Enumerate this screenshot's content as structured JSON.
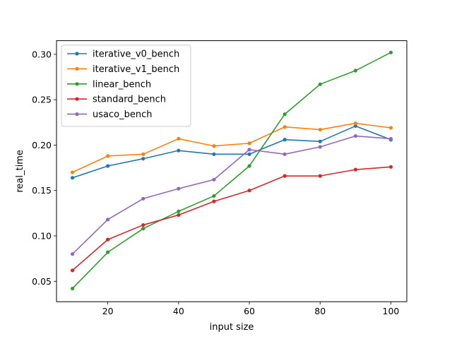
{
  "chart_data": {
    "type": "line",
    "title": "",
    "xlabel": "input size",
    "ylabel": "real_time",
    "xlim": [
      5.5,
      104.5
    ],
    "ylim": [
      0.0275,
      0.315
    ],
    "xticks": [
      20,
      40,
      60,
      80,
      100
    ],
    "yticks": [
      0.05,
      0.1,
      0.15,
      0.2,
      0.25,
      0.3
    ],
    "ytick_labels": [
      "0.05",
      "0.10",
      "0.15",
      "0.20",
      "0.25",
      "0.30"
    ],
    "grid": false,
    "legend_position": "top-left",
    "x": [
      10,
      20,
      30,
      40,
      50,
      60,
      70,
      80,
      90,
      100
    ],
    "series": [
      {
        "name": "iterative_v0_bench",
        "color": "#1f77b4",
        "values": [
          0.164,
          0.177,
          0.185,
          0.194,
          0.19,
          0.19,
          0.206,
          0.204,
          0.221,
          0.206
        ]
      },
      {
        "name": "iterative_v1_bench",
        "color": "#ff7f0e",
        "values": [
          0.17,
          0.188,
          0.19,
          0.207,
          0.199,
          0.202,
          0.22,
          0.217,
          0.224,
          0.219
        ]
      },
      {
        "name": "linear_bench",
        "color": "#2ca02c",
        "values": [
          0.042,
          0.082,
          0.108,
          0.127,
          0.144,
          0.177,
          0.234,
          0.267,
          0.282,
          0.302
        ]
      },
      {
        "name": "standard_bench",
        "color": "#d62728",
        "values": [
          0.062,
          0.096,
          0.112,
          0.123,
          0.138,
          0.15,
          0.166,
          0.166,
          0.173,
          0.176
        ]
      },
      {
        "name": "usaco_bench",
        "color": "#9467bd",
        "values": [
          0.08,
          0.118,
          0.141,
          0.152,
          0.162,
          0.195,
          0.19,
          0.198,
          0.21,
          0.207
        ]
      }
    ]
  }
}
